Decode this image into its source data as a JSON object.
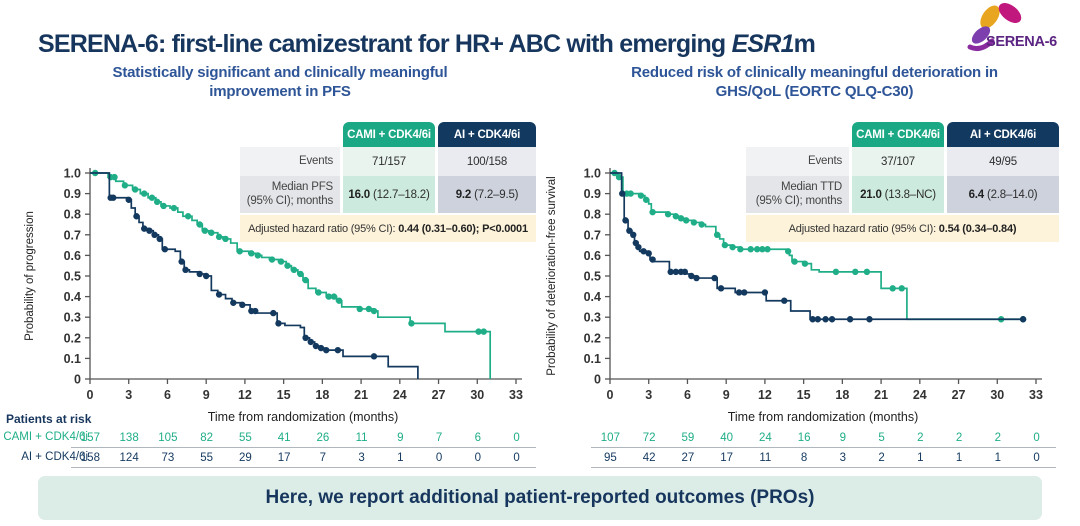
{
  "title": {
    "prefix": "SERENA-6: first-line camizestrant for HR+ ABC with emerging ",
    "italic": "ESR1",
    "suffix": "m"
  },
  "logo": {
    "text": "SERENA-6"
  },
  "colors": {
    "cami_green": "#1fae87",
    "ai_navy": "#14395f",
    "title_navy": "#17365d",
    "subtitle_blue": "#2e5597",
    "hazard_row_bg": "#fdf3da",
    "banner_bg": "#dcece7",
    "logo_purple": "#5b2482",
    "logo_gold": "#e8a51f",
    "logo_magenta": "#c0187d",
    "logo_violet": "#7d3fae"
  },
  "banner": {
    "text": "Here, we report additional patient-reported outcomes (PROs)"
  },
  "panels": [
    {
      "subtitle": "Statistically significant and clinically meaningful\nimprovement in PFS",
      "table": {
        "col_cami": "CAMI + CDK4/6i",
        "col_ai": "AI + CDK4/6i",
        "events_label": "Events",
        "events_cami": "71/157",
        "events_ai": "100/158",
        "median_label": "Median PFS\n(95% CI); months",
        "median_cami_bold": "16.0",
        "median_cami_rest": " (12.7–18.2)",
        "median_ai_bold": "9.2",
        "median_ai_rest": " (7.2–9.5)",
        "hazard_label": "Adjusted hazard ratio (95% CI): ",
        "hazard_value": "0.44 (0.31–0.60); P<0.0001"
      }
    },
    {
      "subtitle": "Reduced risk of clinically meaningful deterioration in\nGHS/QoL (EORTC QLQ-C30)",
      "table": {
        "col_cami": "CAMI + CDK4/6i",
        "col_ai": "AI + CDK4/6i",
        "events_label": "Events",
        "events_cami": "37/107",
        "events_ai": "49/95",
        "median_label": "Median TTD\n(95% CI); months",
        "median_cami_bold": "21.0",
        "median_cami_rest": " (13.8–NC)",
        "median_ai_bold": "6.4",
        "median_ai_rest": " (2.8–14.0)",
        "hazard_label": "Adjusted hazard ratio (95% CI): ",
        "hazard_value": "0.54 (0.34–0.84)"
      }
    }
  ],
  "chart_data": [
    {
      "type": "line",
      "subtype": "kaplan-meier-step",
      "title": "Statistically significant and clinically meaningful improvement in PFS",
      "xlabel": "Time from randomization (months)",
      "ylabel": "Probability of progression",
      "xlim": [
        0,
        33
      ],
      "ylim": [
        0,
        1
      ],
      "grid": false,
      "legend_position": "none",
      "xticks": [
        0,
        3,
        6,
        9,
        12,
        15,
        18,
        21,
        24,
        27,
        30,
        33
      ],
      "yticks": [
        "1.0",
        "0.9",
        "0.8",
        "0.7",
        "0.6",
        "0.5",
        "0.4",
        "0.3",
        "0.2",
        "0.1",
        "0"
      ],
      "series": [
        {
          "name": "CAMI + CDK4/6i",
          "color": "#1fae87",
          "steps": [
            [
              1.4,
              0.98
            ],
            [
              2.0,
              0.96
            ],
            [
              2.6,
              0.94
            ],
            [
              3.3,
              0.92
            ],
            [
              3.9,
              0.9
            ],
            [
              4.5,
              0.88
            ],
            [
              5.1,
              0.86
            ],
            [
              5.5,
              0.84
            ],
            [
              6.2,
              0.83
            ],
            [
              6.8,
              0.81
            ],
            [
              7.2,
              0.79
            ],
            [
              7.9,
              0.77
            ],
            [
              8.3,
              0.75
            ],
            [
              8.7,
              0.72
            ],
            [
              9.2,
              0.71
            ],
            [
              9.9,
              0.69
            ],
            [
              10.3,
              0.68
            ],
            [
              10.9,
              0.66
            ],
            [
              11.4,
              0.62
            ],
            [
              12.3,
              0.61
            ],
            [
              12.9,
              0.6
            ],
            [
              13.3,
              0.59
            ],
            [
              13.9,
              0.58
            ],
            [
              14.6,
              0.57
            ],
            [
              15.2,
              0.55
            ],
            [
              15.6,
              0.53
            ],
            [
              16.1,
              0.51
            ],
            [
              16.5,
              0.48
            ],
            [
              16.9,
              0.44
            ],
            [
              17.5,
              0.42
            ],
            [
              18.3,
              0.4
            ],
            [
              19.1,
              0.38
            ],
            [
              19.5,
              0.35
            ],
            [
              20.8,
              0.34
            ],
            [
              21.9,
              0.33
            ],
            [
              22.3,
              0.3
            ],
            [
              24.8,
              0.27
            ],
            [
              27.5,
              0.23
            ],
            [
              31.0,
              0.0
            ]
          ],
          "censor_marks": [
            0.4,
            1.6,
            1.9,
            2.7,
            3.5,
            4.2,
            4.8,
            5.2,
            5.7,
            6.5,
            7.6,
            8.5,
            8.9,
            9.4,
            10.0,
            10.5,
            11.6,
            12.5,
            13.0,
            14.1,
            14.8,
            15.3,
            15.8,
            16.3,
            16.7,
            17.7,
            18.5,
            18.9,
            19.3,
            20.9,
            21.6,
            22.0,
            24.9,
            30.1,
            30.5
          ],
          "end_x": 31.0,
          "median": "16.0 (12.7–18.2)"
        },
        {
          "name": "AI + CDK4/6i",
          "color": "#14395f",
          "steps": [
            [
              1.5,
              0.88
            ],
            [
              2.9,
              0.87
            ],
            [
              3.2,
              0.83
            ],
            [
              3.5,
              0.79
            ],
            [
              3.8,
              0.76
            ],
            [
              4.1,
              0.73
            ],
            [
              4.5,
              0.72
            ],
            [
              4.9,
              0.7
            ],
            [
              5.3,
              0.68
            ],
            [
              5.6,
              0.63
            ],
            [
              6.6,
              0.62
            ],
            [
              7.0,
              0.57
            ],
            [
              7.3,
              0.53
            ],
            [
              7.7,
              0.52
            ],
            [
              8.4,
              0.51
            ],
            [
              8.9,
              0.5
            ],
            [
              9.4,
              0.43
            ],
            [
              9.9,
              0.41
            ],
            [
              10.5,
              0.39
            ],
            [
              11.0,
              0.37
            ],
            [
              11.7,
              0.36
            ],
            [
              12.4,
              0.33
            ],
            [
              12.9,
              0.32
            ],
            [
              14.5,
              0.27
            ],
            [
              15.1,
              0.26
            ],
            [
              16.3,
              0.25
            ],
            [
              16.6,
              0.2
            ],
            [
              17.0,
              0.18
            ],
            [
              17.4,
              0.16
            ],
            [
              17.8,
              0.15
            ],
            [
              18.2,
              0.14
            ],
            [
              19.6,
              0.11
            ],
            [
              23.1,
              0.06
            ],
            [
              25.4,
              0.0
            ]
          ],
          "censor_marks": [
            1.6,
            1.8,
            3.0,
            3.6,
            4.2,
            4.6,
            5.0,
            5.4,
            5.8,
            7.1,
            7.4,
            8.5,
            9.0,
            10.0,
            11.1,
            11.8,
            12.5,
            12.8,
            14.2,
            14.6,
            16.7,
            17.1,
            17.5,
            17.9,
            18.3,
            19.2,
            22.0
          ],
          "end_x": 25.4,
          "median": "9.2 (7.2–9.5)"
        }
      ],
      "hazard_ratio": "0.44 (0.31–0.60); P<0.0001",
      "patients_at_risk": {
        "title": "Patients at risk",
        "rows": [
          {
            "label": "CAMI + CDK4/6i",
            "values": [
              157,
              138,
              105,
              82,
              55,
              41,
              26,
              11,
              9,
              7,
              6,
              0
            ]
          },
          {
            "label": "AI + CDK4/6i",
            "values": [
              158,
              124,
              73,
              55,
              29,
              17,
              7,
              3,
              1,
              0,
              0,
              0
            ]
          }
        ]
      }
    },
    {
      "type": "line",
      "subtype": "kaplan-meier-step",
      "title": "Reduced risk of clinically meaningful deterioration in GHS/QoL (EORTC QLQ-C30)",
      "xlabel": "Time from randomization (months)",
      "ylabel": "Probability of deterioration-free survival",
      "xlim": [
        0,
        33
      ],
      "ylim": [
        0,
        1
      ],
      "grid": false,
      "legend_position": "none",
      "xticks": [
        0,
        3,
        6,
        9,
        12,
        15,
        18,
        21,
        24,
        27,
        30,
        33
      ],
      "yticks": [
        "1.0",
        "0.9",
        "0.8",
        "0.7",
        "0.6",
        "0.5",
        "0.4",
        "0.3",
        "0.2",
        "0.1",
        "0"
      ],
      "series": [
        {
          "name": "CAMI + CDK4/6i",
          "color": "#1fae87",
          "steps": [
            [
              0.6,
              0.98
            ],
            [
              1.0,
              0.9
            ],
            [
              2.3,
              0.89
            ],
            [
              2.7,
              0.87
            ],
            [
              3.0,
              0.85
            ],
            [
              3.2,
              0.81
            ],
            [
              4.4,
              0.8
            ],
            [
              5.0,
              0.79
            ],
            [
              5.4,
              0.78
            ],
            [
              5.8,
              0.77
            ],
            [
              6.4,
              0.76
            ],
            [
              7.0,
              0.75
            ],
            [
              7.4,
              0.74
            ],
            [
              8.2,
              0.7
            ],
            [
              8.5,
              0.68
            ],
            [
              8.8,
              0.65
            ],
            [
              9.4,
              0.64
            ],
            [
              10.0,
              0.63
            ],
            [
              13.7,
              0.62
            ],
            [
              13.9,
              0.6
            ],
            [
              14.1,
              0.57
            ],
            [
              15.0,
              0.56
            ],
            [
              15.6,
              0.53
            ],
            [
              16.2,
              0.52
            ],
            [
              21.0,
              0.44
            ],
            [
              23.0,
              0.29
            ]
          ],
          "censor_marks": [
            0.35,
            0.7,
            1.3,
            1.6,
            2.4,
            2.8,
            3.3,
            4.5,
            5.1,
            5.5,
            5.9,
            6.5,
            7.1,
            8.3,
            8.9,
            9.5,
            10.1,
            10.9,
            11.4,
            11.8,
            12.2,
            13.8,
            14.3,
            15.1,
            17.5,
            19.0,
            19.9,
            21.9,
            22.6,
            30.3,
            32.0
          ],
          "end_x": 32.0,
          "median": "21.0 (13.8–NC)"
        },
        {
          "name": "AI + CDK4/6i",
          "color": "#14395f",
          "steps": [
            [
              0.9,
              0.9
            ],
            [
              1.1,
              0.77
            ],
            [
              1.4,
              0.72
            ],
            [
              1.7,
              0.7
            ],
            [
              1.9,
              0.66
            ],
            [
              2.1,
              0.64
            ],
            [
              2.3,
              0.62
            ],
            [
              2.9,
              0.61
            ],
            [
              3.1,
              0.58
            ],
            [
              3.4,
              0.57
            ],
            [
              4.6,
              0.52
            ],
            [
              5.9,
              0.51
            ],
            [
              6.2,
              0.5
            ],
            [
              6.6,
              0.49
            ],
            [
              8.3,
              0.44
            ],
            [
              9.7,
              0.42
            ],
            [
              12.1,
              0.38
            ],
            [
              14.0,
              0.33
            ],
            [
              15.5,
              0.29
            ]
          ],
          "censor_marks": [
            0.95,
            1.2,
            1.5,
            1.8,
            2.0,
            2.2,
            2.6,
            3.0,
            3.3,
            4.7,
            5.1,
            5.5,
            5.8,
            6.3,
            6.7,
            8.1,
            8.6,
            10.0,
            10.4,
            12.0,
            13.5,
            15.7,
            16.1,
            16.7,
            17.2,
            18.6,
            20.1,
            32.0
          ],
          "end_x": 32.0,
          "median": "6.4 (2.8–14.0)"
        }
      ],
      "hazard_ratio": "0.54 (0.34–0.84)",
      "patients_at_risk": {
        "rows": [
          {
            "label": "CAMI + CDK4/6i",
            "values": [
              107,
              72,
              59,
              40,
              24,
              16,
              9,
              5,
              2,
              2,
              2,
              0
            ]
          },
          {
            "label": "AI + CDK4/6i",
            "values": [
              95,
              42,
              27,
              17,
              11,
              8,
              3,
              2,
              1,
              1,
              1,
              0
            ]
          }
        ]
      }
    }
  ]
}
